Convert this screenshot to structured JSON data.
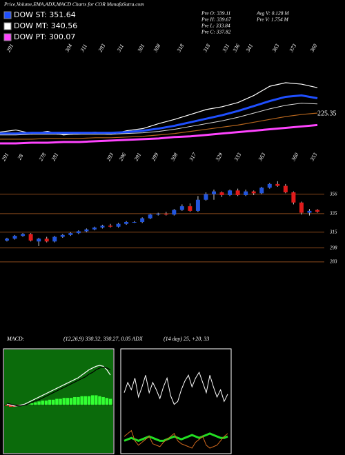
{
  "header": {
    "title": "Price,Volume,EMA,ADX,MACD Charts for COR MunafaSutra.com",
    "legend": [
      {
        "label": "DOW ST: 351.64",
        "color": "#1f4fff"
      },
      {
        "label": "DOW MT: 340.56",
        "color": "#ffffff"
      },
      {
        "label": "DOW PT: 300.07",
        "color": "#ff44ff"
      }
    ],
    "info": [
      "Pre O: 339.11",
      "Pre H: 339.67",
      "Pre L: 333.84",
      "Pre C: 337.82",
      "Avg V: 0.128 M",
      "Pre V: 1.754 M"
    ]
  },
  "chart_data": [
    {
      "type": "line",
      "annotation": "225.35",
      "top_labels": [
        291,
        304,
        311,
        293,
        311,
        301,
        308,
        318,
        318,
        331,
        336,
        341,
        363,
        373,
        360
      ],
      "low_labels": [
        291,
        28,
        278,
        281,
        293,
        296,
        291,
        299,
        308,
        317,
        329,
        333,
        363,
        360,
        353
      ],
      "series": [
        {
          "color": "#ffffff",
          "values": [
            300,
            303,
            298,
            301,
            296,
            298,
            300,
            297,
            302,
            305,
            312,
            318,
            325,
            332,
            336,
            342,
            352,
            365,
            370,
            368,
            363
          ]
        },
        {
          "color": "#1f4fff",
          "values": [
            298,
            298,
            299,
            299,
            299,
            299,
            299,
            299,
            300,
            302,
            305,
            309,
            314,
            319,
            324,
            330,
            337,
            344,
            350,
            352,
            348
          ]
        },
        {
          "color": "#dddddd",
          "values": [
            296,
            296,
            297,
            297,
            297,
            297,
            297,
            297,
            298,
            299,
            301,
            304,
            308,
            312,
            316,
            321,
            327,
            333,
            338,
            341,
            340
          ]
        },
        {
          "color": "#b5651d",
          "values": [
            290,
            290,
            290,
            291,
            291,
            291,
            292,
            292,
            293,
            294,
            296,
            298,
            301,
            304,
            307,
            310,
            314,
            318,
            322,
            325,
            327
          ]
        },
        {
          "color": "#ff44ff",
          "values": [
            284,
            284,
            285,
            285,
            286,
            286,
            287,
            288,
            289,
            290,
            291,
            293,
            294,
            296,
            298,
            300,
            302,
            304,
            306,
            308,
            310
          ]
        }
      ]
    },
    {
      "type": "candlestick",
      "up_color": "#2255dd",
      "down_color": "#e01b1b",
      "grid_color": "#8b4a1c",
      "ylim": [
        268,
        387
      ],
      "yticks": [
        356,
        335,
        315,
        298,
        283
      ],
      "open": [
        306,
        308,
        311,
        313,
        305,
        308,
        305,
        310,
        312,
        314,
        316,
        318,
        320,
        322,
        321,
        324,
        326,
        326,
        330,
        334,
        335,
        334,
        339,
        343,
        338,
        350,
        356,
        358,
        355,
        360,
        355,
        359,
        357,
        363,
        367,
        365,
        358,
        347,
        336,
        339
      ],
      "high": [
        309,
        312,
        314,
        314,
        309,
        310,
        311,
        313,
        315,
        317,
        319,
        321,
        323,
        324,
        325,
        327,
        327,
        331,
        335,
        336,
        337,
        340,
        345,
        346,
        354,
        358,
        361,
        359,
        361,
        362,
        361,
        360,
        364,
        368,
        370,
        367,
        359,
        348,
        340,
        340
      ],
      "low": [
        305,
        307,
        310,
        305,
        300,
        304,
        304,
        309,
        311,
        313,
        315,
        317,
        319,
        320,
        320,
        323,
        325,
        325,
        329,
        333,
        333,
        333,
        338,
        337,
        337,
        349,
        350,
        353,
        354,
        354,
        354,
        355,
        356,
        362,
        364,
        357,
        345,
        334,
        333,
        336
      ],
      "close": [
        308,
        311,
        313,
        306,
        308,
        305,
        310,
        312,
        314,
        316,
        318,
        320,
        322,
        321,
        324,
        326,
        326,
        330,
        334,
        335,
        334,
        339,
        343,
        338,
        350,
        356,
        359,
        355,
        360,
        355,
        359,
        357,
        363,
        367,
        365,
        358,
        347,
        336,
        338,
        337
      ]
    },
    {
      "type": "macd",
      "title": "MACD:",
      "subtitle": "(12,26,9) 330.32, 330.27, 0.05 ADX",
      "background": "#0b6b0b",
      "histogram": [
        -1,
        -2,
        -2,
        -1,
        -0.5,
        0.5,
        1,
        2,
        3,
        4,
        5,
        5,
        6,
        6,
        7,
        7,
        8,
        8,
        8,
        9,
        9,
        10,
        10,
        10,
        11,
        11,
        10,
        9,
        8,
        7
      ],
      "series": [
        {
          "color": "#ffffff",
          "values": [
            1,
            0,
            -1,
            -1,
            0,
            1,
            3,
            5,
            7,
            9,
            11,
            13,
            15,
            17,
            19,
            21,
            23,
            25,
            27,
            29,
            31,
            34,
            37,
            40,
            42,
            44,
            45,
            44,
            40,
            34
          ]
        },
        {
          "color": "#000000",
          "values": [
            2,
            1,
            0,
            -1,
            -1,
            0,
            1,
            3,
            5,
            6,
            8,
            10,
            12,
            14,
            16,
            18,
            20,
            22,
            24,
            26,
            28,
            30,
            32,
            35,
            37,
            40,
            42,
            43,
            42,
            40
          ]
        }
      ]
    },
    {
      "type": "adx",
      "title": "(14 day) 25, +20, 33",
      "series": [
        {
          "color": "#ffffff",
          "values": [
            48,
            55,
            50,
            58,
            45,
            52,
            60,
            48,
            55,
            50,
            44,
            52,
            58,
            46,
            40,
            42,
            50,
            56,
            60,
            52,
            58,
            62,
            55,
            48,
            60,
            52,
            45,
            50,
            42,
            47
          ]
        },
        {
          "color": "#22dd22",
          "values": [
            15,
            16,
            17,
            16,
            15,
            16,
            17,
            18,
            17,
            16,
            15,
            15,
            16,
            17,
            18,
            17,
            16,
            17,
            18,
            19,
            18,
            17,
            18,
            19,
            20,
            19,
            18,
            17,
            17,
            18
          ]
        },
        {
          "color": "#d2691e",
          "values": [
            18,
            20,
            22,
            15,
            12,
            14,
            16,
            18,
            13,
            12,
            11,
            14,
            16,
            18,
            20,
            15,
            13,
            12,
            11,
            10,
            14,
            16,
            18,
            12,
            10,
            11,
            12,
            15,
            18,
            20
          ]
        }
      ]
    }
  ]
}
